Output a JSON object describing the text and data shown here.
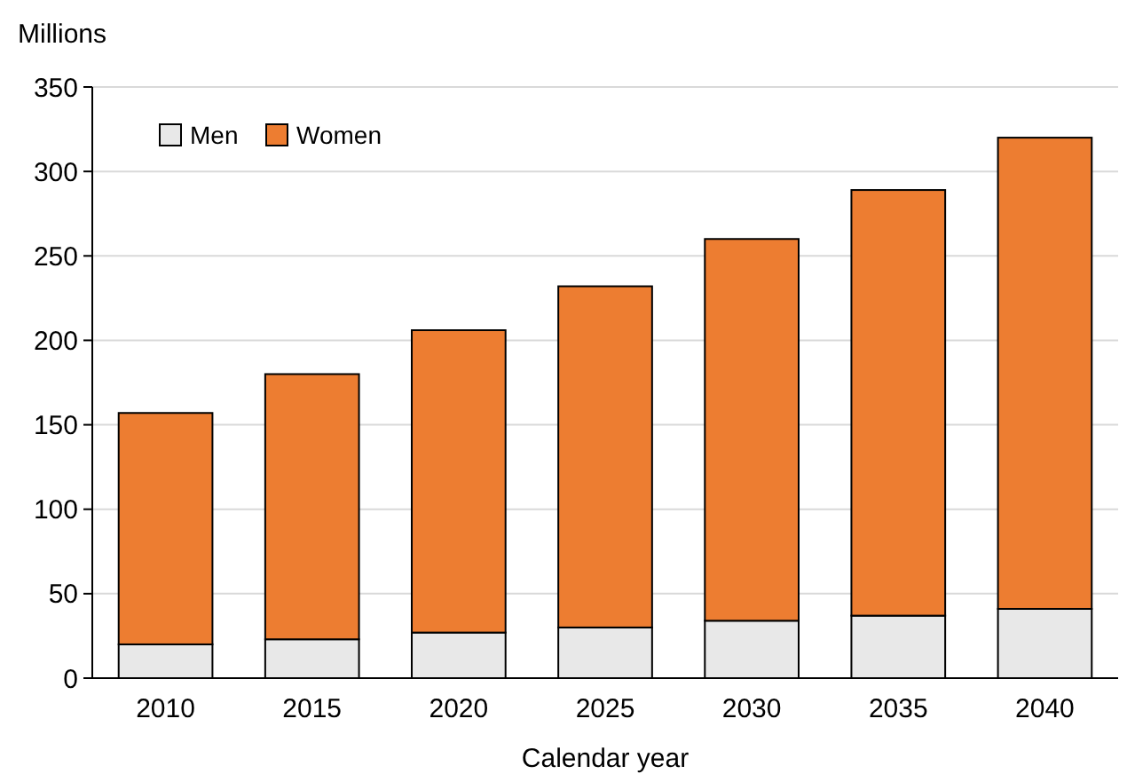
{
  "chart_data": {
    "type": "bar",
    "stacked": true,
    "ylabel": "Millions",
    "xlabel": "Calendar year",
    "categories": [
      "2010",
      "2015",
      "2020",
      "2025",
      "2030",
      "2035",
      "2040"
    ],
    "series": [
      {
        "name": "Men",
        "color": "#e8e8e8",
        "values": [
          20,
          23,
          27,
          30,
          34,
          37,
          41
        ]
      },
      {
        "name": "Women",
        "color": "#ed7d31",
        "values": [
          137,
          157,
          179,
          202,
          226,
          252,
          279
        ]
      }
    ],
    "ylim": [
      0,
      350
    ],
    "yticks": [
      0,
      50,
      100,
      150,
      200,
      250,
      300,
      350
    ],
    "grid": "y",
    "legend": "top left"
  }
}
